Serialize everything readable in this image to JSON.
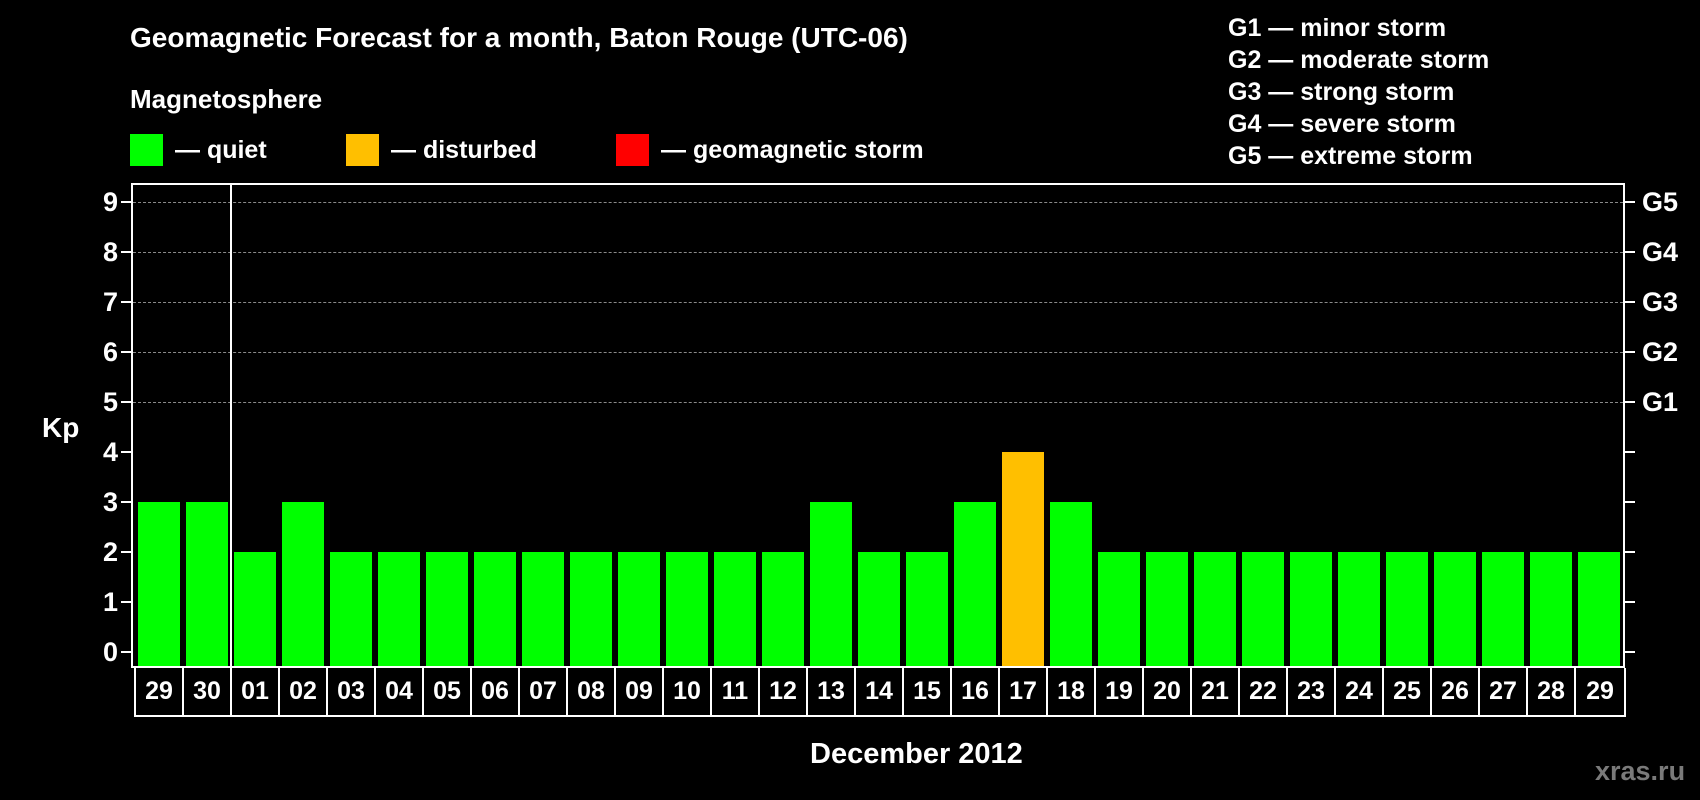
{
  "header": {
    "title": "Geomagnetic Forecast for a month, Baton Rouge (UTC-06)",
    "subtitle": "Magnetosphere"
  },
  "legend": [
    {
      "label": "— quiet",
      "color": "#00ff00"
    },
    {
      "label": "— disturbed",
      "color": "#ffbf00"
    },
    {
      "label": "— geomagnetic storm",
      "color": "#ff0000"
    }
  ],
  "storm_scale": [
    {
      "label": "G1 — minor storm"
    },
    {
      "label": "G2 — moderate storm"
    },
    {
      "label": "G3 — strong storm"
    },
    {
      "label": "G4 — severe storm"
    },
    {
      "label": "G5 — extreme storm"
    }
  ],
  "axis": {
    "ylabel": "Kp",
    "xlabel": "December 2012",
    "yticks": [
      "0",
      "1",
      "2",
      "3",
      "4",
      "5",
      "6",
      "7",
      "8",
      "9"
    ],
    "right_ticks": [
      {
        "value": 5,
        "label": "G1"
      },
      {
        "value": 6,
        "label": "G2"
      },
      {
        "value": 7,
        "label": "G3"
      },
      {
        "value": 8,
        "label": "G4"
      },
      {
        "value": 9,
        "label": "G5"
      }
    ]
  },
  "watermark": "xras.ru",
  "colors": {
    "quiet": "#00ff00",
    "disturbed": "#ffbf00",
    "storm": "#ff0000",
    "grid": "#8a8a8a"
  },
  "chart_data": {
    "type": "bar",
    "title": "Geomagnetic Forecast for a month, Baton Rouge (UTC-06)",
    "xlabel": "December 2012",
    "ylabel": "Kp",
    "ylim": [
      0,
      9
    ],
    "grid": "dashed horizontal at Kp 5-9",
    "legend_position": "top",
    "categories": [
      "29",
      "30",
      "01",
      "02",
      "03",
      "04",
      "05",
      "06",
      "07",
      "08",
      "09",
      "10",
      "11",
      "12",
      "13",
      "14",
      "15",
      "16",
      "17",
      "18",
      "19",
      "20",
      "21",
      "22",
      "23",
      "24",
      "25",
      "26",
      "27",
      "28",
      "29"
    ],
    "values": [
      3,
      3,
      2,
      3,
      2,
      2,
      2,
      2,
      2,
      2,
      2,
      2,
      2,
      2,
      3,
      2,
      2,
      3,
      4,
      3,
      2,
      2,
      2,
      2,
      2,
      2,
      2,
      2,
      2,
      2,
      2
    ],
    "status": [
      "quiet",
      "quiet",
      "quiet",
      "quiet",
      "quiet",
      "quiet",
      "quiet",
      "quiet",
      "quiet",
      "quiet",
      "quiet",
      "quiet",
      "quiet",
      "quiet",
      "quiet",
      "quiet",
      "quiet",
      "quiet",
      "disturbed",
      "quiet",
      "quiet",
      "quiet",
      "quiet",
      "quiet",
      "quiet",
      "quiet",
      "quiet",
      "quiet",
      "quiet",
      "quiet",
      "quiet"
    ],
    "month_separator_after_index": 1,
    "secondary_axis": {
      "5": "G1",
      "6": "G2",
      "7": "G3",
      "8": "G4",
      "9": "G5"
    }
  }
}
